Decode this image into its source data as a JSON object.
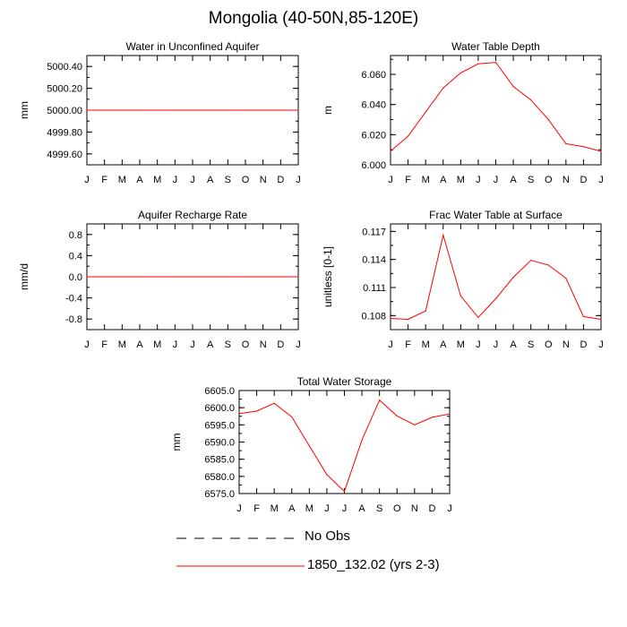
{
  "page": {
    "title": "Mongolia (40-50N,85-120E)"
  },
  "months": [
    "J",
    "F",
    "M",
    "A",
    "M",
    "J",
    "J",
    "A",
    "S",
    "O",
    "N",
    "D",
    "J"
  ],
  "legend": {
    "items": [
      {
        "label": "No Obs",
        "style": "dashed",
        "color": "#000000"
      },
      {
        "label": "1850_132.02 (yrs 2-3)",
        "style": "solid",
        "color": "#ff0000"
      }
    ]
  },
  "chart_data": [
    {
      "type": "line",
      "title": "Water in Unconfined Aquifer",
      "ylabel": "mm",
      "ylim": [
        4999.5,
        5000.5
      ],
      "yticks": [
        4999.6,
        4999.8,
        5000.0,
        5000.2,
        5000.4
      ],
      "ytick_labels": [
        "4999.60",
        "4999.80",
        "5000.00",
        "5000.20",
        "5000.40"
      ],
      "series": [
        {
          "name": "1850_132.02 (yrs 2-3)",
          "color": "#ff0000",
          "values": [
            5000,
            5000,
            5000,
            5000,
            5000,
            5000,
            5000,
            5000,
            5000,
            5000,
            5000,
            5000,
            5000
          ]
        }
      ]
    },
    {
      "type": "line",
      "title": "Water Table Depth",
      "ylabel": "m",
      "ylim": [
        6.0,
        6.0725
      ],
      "yticks": [
        6.0,
        6.02,
        6.04,
        6.06
      ],
      "ytick_labels": [
        "6.000",
        "6.020",
        "6.040",
        "6.060"
      ],
      "series": [
        {
          "name": "1850_132.02 (yrs 2-3)",
          "color": "#ff0000",
          "values": [
            6.009,
            6.019,
            6.035,
            6.051,
            6.061,
            6.067,
            6.068,
            6.052,
            6.043,
            6.03,
            6.014,
            6.012,
            6.009
          ]
        }
      ]
    },
    {
      "type": "line",
      "title": "Aquifer Recharge Rate",
      "ylabel": "mm/d",
      "ylim": [
        -1.0,
        1.0
      ],
      "yticks": [
        -0.8,
        -0.4,
        0.0,
        0.4,
        0.8
      ],
      "ytick_labels": [
        "-0.8",
        "-0.4",
        "0.0",
        "0.4",
        "0.8"
      ],
      "series": [
        {
          "name": "1850_132.02 (yrs 2-3)",
          "color": "#ff0000",
          "values": [
            0,
            0,
            0,
            0,
            0,
            0,
            0,
            0,
            0,
            0,
            0,
            0,
            0
          ]
        }
      ]
    },
    {
      "type": "line",
      "title": "Frac Water Table at Surface",
      "ylabel": "unitless [0-1]",
      "ylim": [
        0.1065,
        0.1178
      ],
      "yticks": [
        0.108,
        0.111,
        0.114,
        0.117
      ],
      "ytick_labels": [
        "0.108",
        "0.111",
        "0.114",
        "0.117"
      ],
      "series": [
        {
          "name": "1850_132.02 (yrs 2-3)",
          "color": "#ff0000",
          "values": [
            0.1077,
            0.1076,
            0.1085,
            0.1166,
            0.1101,
            0.1078,
            0.1098,
            0.1121,
            0.1139,
            0.1134,
            0.112,
            0.1079,
            0.1076
          ]
        }
      ]
    },
    {
      "type": "line",
      "title": "Total Water Storage",
      "ylabel": "mm",
      "ylim": [
        6575.0,
        6605.0
      ],
      "yticks": [
        6575,
        6580,
        6585,
        6590,
        6595,
        6600,
        6605
      ],
      "ytick_labels": [
        "6575.0",
        "6580.0",
        "6585.0",
        "6590.0",
        "6595.0",
        "6600.0",
        "6605.0"
      ],
      "series": [
        {
          "name": "1850_132.02 (yrs 2-3)",
          "color": "#ff0000",
          "values": [
            6598.3,
            6599.0,
            6601.3,
            6597.3,
            6588.9,
            6580.5,
            6575.6,
            6590.6,
            6602.2,
            6597.6,
            6595.0,
            6597.2,
            6598.2
          ]
        }
      ]
    }
  ]
}
